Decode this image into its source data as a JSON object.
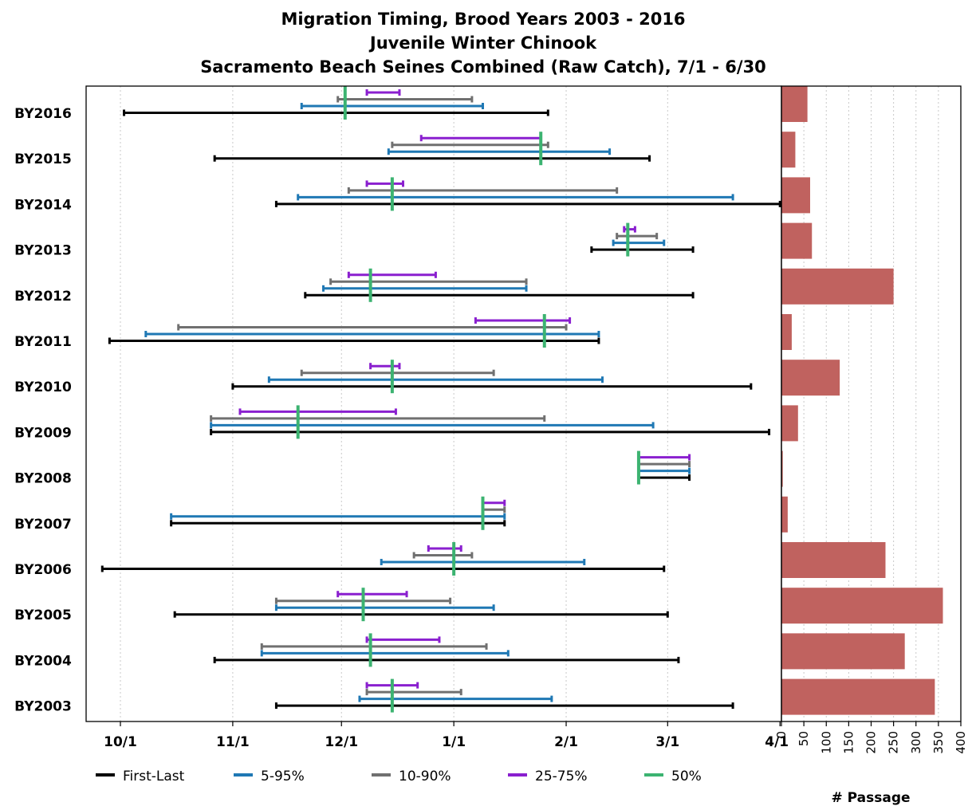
{
  "chart_data": {
    "type": "range_bar_with_bar_panel",
    "title": [
      "Migration Timing, Brood Years 2003 - 2016",
      "Juvenile Winter Chinook",
      "Sacramento Beach Seines Combined (Raw Catch), 7/1 - 6/30"
    ],
    "x_tick_labels": [
      "10/1",
      "11/1",
      "12/1",
      "1/1",
      "2/1",
      "3/1",
      "4/1"
    ],
    "right_panel": {
      "xlabel": "# Passage",
      "ticks": [
        0,
        50,
        100,
        150,
        200,
        250,
        300,
        350,
        400
      ],
      "xlim": [
        0,
        400
      ]
    },
    "legend": [
      {
        "key": "first_last",
        "label": "First-Last",
        "color": "#000000"
      },
      {
        "key": "p5_95",
        "label": "5-95%",
        "color": "#1f78b4"
      },
      {
        "key": "p10_90",
        "label": "10-90%",
        "color": "#707070"
      },
      {
        "key": "p25_75",
        "label": "25-75%",
        "color": "#8a1fcf"
      },
      {
        "key": "p50",
        "label": "50%",
        "color": "#3cb371"
      }
    ],
    "bar_color": "#c0625f",
    "rows": [
      {
        "label": "BY2016",
        "first_last": [
          "10/2",
          "1/27"
        ],
        "p5_95": [
          "11/20",
          "1/9"
        ],
        "p10_90": [
          "11/30",
          "1/6"
        ],
        "p25_75": [
          "12/8",
          "12/17"
        ],
        "p50": "12/2",
        "passage": 58
      },
      {
        "label": "BY2015",
        "first_last": [
          "10/27",
          "2/24"
        ],
        "p5_95": [
          "12/14",
          "2/13"
        ],
        "p10_90": [
          "12/15",
          "1/27"
        ],
        "p25_75": [
          "12/23",
          "1/25"
        ],
        "p50": "1/25",
        "passage": 31
      },
      {
        "label": "BY2014",
        "first_last": [
          "11/13",
          "4/1"
        ],
        "p5_95": [
          "11/19",
          "3/19"
        ],
        "p10_90": [
          "12/3",
          "2/15"
        ],
        "p25_75": [
          "12/8",
          "12/18"
        ],
        "p50": "12/15",
        "passage": 64
      },
      {
        "label": "BY2013",
        "first_last": [
          "2/8",
          "3/8"
        ],
        "p5_95": [
          "2/14",
          "2/28"
        ],
        "p10_90": [
          "2/15",
          "2/26"
        ],
        "p25_75": [
          "2/17",
          "2/20"
        ],
        "p50": "2/18",
        "passage": 68
      },
      {
        "label": "BY2012",
        "first_last": [
          "11/21",
          "3/8"
        ],
        "p5_95": [
          "11/26",
          "1/21"
        ],
        "p10_90": [
          "11/28",
          "1/21"
        ],
        "p25_75": [
          "12/3",
          "12/27"
        ],
        "p50": "12/9",
        "passage": 250
      },
      {
        "label": "BY2011",
        "first_last": [
          "9/28",
          "2/10"
        ],
        "p5_95": [
          "10/8",
          "2/10"
        ],
        "p10_90": [
          "10/17",
          "2/1"
        ],
        "p25_75": [
          "1/7",
          "2/2"
        ],
        "p50": "1/26",
        "passage": 23
      },
      {
        "label": "BY2010",
        "first_last": [
          "11/1",
          "3/24"
        ],
        "p5_95": [
          "11/11",
          "2/11"
        ],
        "p10_90": [
          "11/20",
          "1/12"
        ],
        "p25_75": [
          "12/9",
          "12/17"
        ],
        "p50": "12/15",
        "passage": 130
      },
      {
        "label": "BY2009",
        "first_last": [
          "10/26",
          "3/29"
        ],
        "p5_95": [
          "10/26",
          "2/25"
        ],
        "p10_90": [
          "10/26",
          "1/26"
        ],
        "p25_75": [
          "11/3",
          "12/16"
        ],
        "p50": "11/19",
        "passage": 37
      },
      {
        "label": "BY2008",
        "first_last": [
          "2/21",
          "3/7"
        ],
        "p5_95": [
          "2/21",
          "3/7"
        ],
        "p10_90": [
          "2/21",
          "3/7"
        ],
        "p25_75": [
          "2/21",
          "3/7"
        ],
        "p50": "2/21",
        "passage": 3
      },
      {
        "label": "BY2007",
        "first_last": [
          "10/15",
          "1/15"
        ],
        "p5_95": [
          "10/15",
          "1/15"
        ],
        "p10_90": [
          "1/9",
          "1/15"
        ],
        "p25_75": [
          "1/9",
          "1/15"
        ],
        "p50": "1/9",
        "passage": 14
      },
      {
        "label": "BY2006",
        "first_last": [
          "9/26",
          "2/28"
        ],
        "p5_95": [
          "12/12",
          "2/6"
        ],
        "p10_90": [
          "12/21",
          "1/6"
        ],
        "p25_75": [
          "12/25",
          "1/3"
        ],
        "p50": "1/1",
        "passage": 232
      },
      {
        "label": "BY2005",
        "first_last": [
          "10/16",
          "3/1"
        ],
        "p5_95": [
          "11/13",
          "1/12"
        ],
        "p10_90": [
          "11/13",
          "12/31"
        ],
        "p25_75": [
          "11/30",
          "12/19"
        ],
        "p50": "12/7",
        "passage": 360
      },
      {
        "label": "BY2004",
        "first_last": [
          "10/27",
          "3/4"
        ],
        "p5_95": [
          "11/9",
          "1/16"
        ],
        "p10_90": [
          "11/9",
          "1/10"
        ],
        "p25_75": [
          "12/8",
          "12/28"
        ],
        "p50": "12/9",
        "passage": 275
      },
      {
        "label": "BY2003",
        "first_last": [
          "11/13",
          "3/19"
        ],
        "p5_95": [
          "12/6",
          "1/28"
        ],
        "p10_90": [
          "12/8",
          "1/3"
        ],
        "p25_75": [
          "12/8",
          "12/22"
        ],
        "p50": "12/15",
        "passage": 342
      }
    ]
  }
}
